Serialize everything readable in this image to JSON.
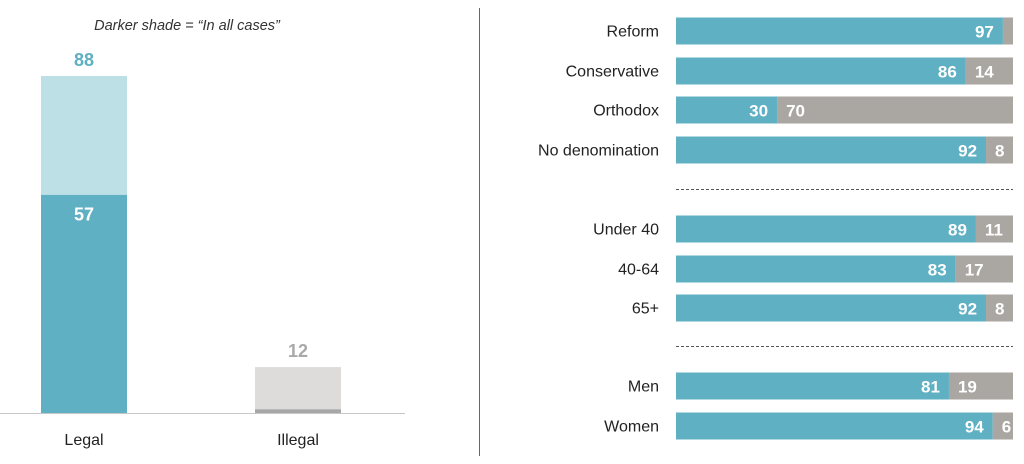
{
  "chart_data": [
    {
      "type": "bar",
      "note": "Darker shade = “In all cases”",
      "categories": [
        "Legal",
        "Illegal"
      ],
      "series": [
        {
          "name": "In all cases",
          "values": [
            57,
            1
          ]
        },
        {
          "name": "",
          "values": [
            31,
            11
          ]
        }
      ],
      "totals": [
        88,
        12
      ],
      "ylim": [
        0,
        100
      ],
      "colors": {
        "legal_dark": "#5fb0c3",
        "legal_light": "#bde0e7",
        "illegal_dark": "#a7a7a7",
        "illegal_light": "#dddcda",
        "legal_total_label": "#5fb0c3",
        "illegal_total_label": "#a9a9a9",
        "axis": "#c7c7c7"
      },
      "inner_labels": [
        "57",
        ""
      ]
    },
    {
      "type": "bar",
      "orientation": "horizontal",
      "stacked": true,
      "xlim": [
        0,
        100
      ],
      "groups": [
        {
          "rows": [
            {
              "label": "Reform",
              "values": [
                97,
                3
              ],
              "labels": [
                "97",
                ""
              ]
            },
            {
              "label": "Conservative",
              "values": [
                86,
                14
              ],
              "labels": [
                "86",
                "14"
              ]
            },
            {
              "label": "Orthodox",
              "values": [
                30,
                70
              ],
              "labels": [
                "30",
                "70"
              ]
            },
            {
              "label": "No denomination",
              "values": [
                92,
                8
              ],
              "labels": [
                "92",
                "8"
              ]
            }
          ]
        },
        {
          "rows": [
            {
              "label": "Under 40",
              "values": [
                89,
                11
              ],
              "labels": [
                "89",
                "11"
              ]
            },
            {
              "label": "40-64",
              "values": [
                83,
                17
              ],
              "labels": [
                "83",
                "17"
              ]
            },
            {
              "label": "65+",
              "values": [
                92,
                8
              ],
              "labels": [
                "92",
                "8"
              ]
            }
          ]
        },
        {
          "rows": [
            {
              "label": "Men",
              "values": [
                81,
                19
              ],
              "labels": [
                "81",
                "19"
              ]
            },
            {
              "label": "Women",
              "values": [
                94,
                6
              ],
              "labels": [
                "94",
                "6"
              ]
            }
          ]
        }
      ],
      "colors": {
        "first": "#5fb0c3",
        "second": "#aaa6a1",
        "value_text": "#ffffff",
        "label_text": "#222222",
        "divider": "#555555"
      }
    }
  ]
}
